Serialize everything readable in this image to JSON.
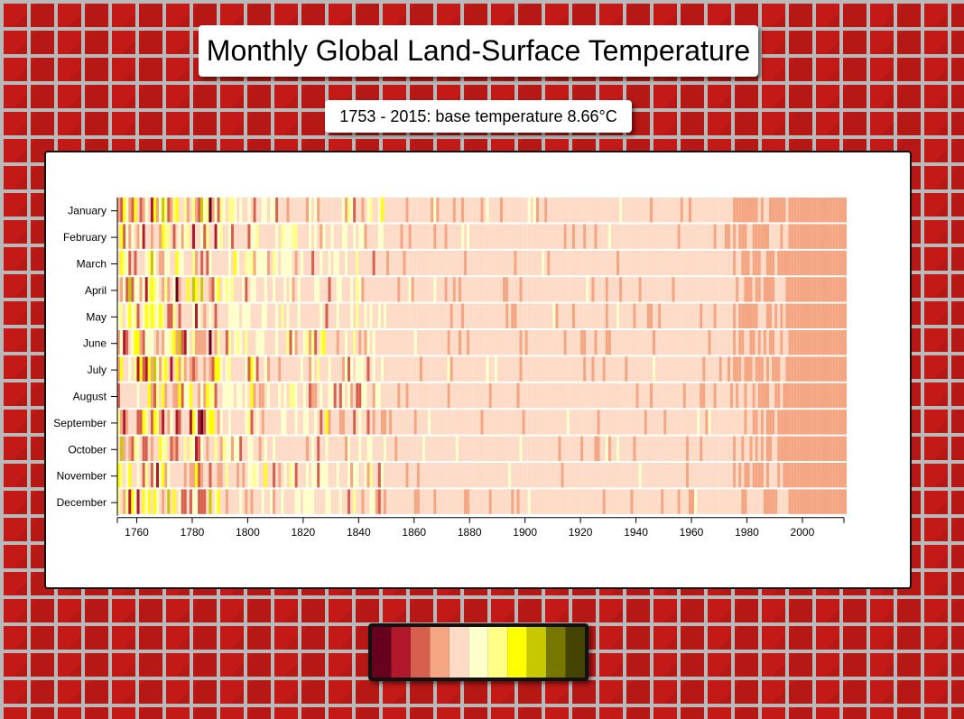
{
  "header": {
    "title": "Monthly Global Land-Surface Temperature",
    "subtitle": "1753 - 2015: base temperature 8.66°C"
  },
  "chart_data": {
    "type": "heatmap",
    "title": "Monthly Global Land-Surface Temperature",
    "subtitle": "1753 - 2015: base temperature 8.66°C",
    "base_temperature": 8.66,
    "x_range": [
      1753,
      2015
    ],
    "y_categories": [
      "January",
      "February",
      "March",
      "April",
      "May",
      "June",
      "July",
      "August",
      "September",
      "October",
      "November",
      "December"
    ],
    "x_ticks": [
      1760,
      1780,
      1800,
      1820,
      1840,
      1860,
      1880,
      1900,
      1920,
      1940,
      1960,
      1980,
      2000
    ],
    "legend_colors": [
      "#67001f",
      "#b2182b",
      "#d6604d",
      "#f4a582",
      "#fddbc7",
      "#ffffcc",
      "#ffff88",
      "#ffff00",
      "#c8c800",
      "#777700",
      "#444400"
    ],
    "segments": [
      {
        "from": 1753,
        "to": 1780,
        "color": "mixed-light"
      },
      {
        "from": 1780,
        "to": 1850,
        "color": "#fddbc7"
      },
      {
        "from": 1850,
        "to": 1985,
        "color": "#fddbc7"
      },
      {
        "from": 1985,
        "to": 2015,
        "color": "#f4a582"
      }
    ]
  }
}
